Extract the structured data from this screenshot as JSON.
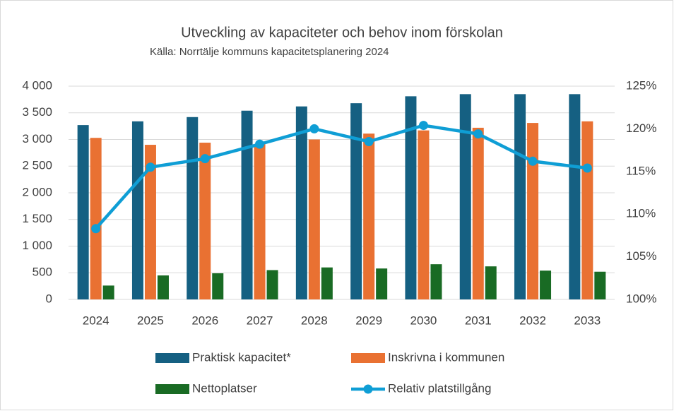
{
  "chart_data": {
    "type": "bar_line",
    "title": "Utveckling av kapaciteter och behov inom förskolan",
    "subtitle": "Källa: Norrtälje kommuns kapacitetsplanering 2024",
    "categories": [
      "2024",
      "2025",
      "2026",
      "2027",
      "2028",
      "2029",
      "2030",
      "2031",
      "2032",
      "2033"
    ],
    "series": [
      {
        "name": "Praktisk kapacitet*",
        "color": "#156082",
        "type": "bar",
        "values": [
          3270,
          3340,
          3420,
          3540,
          3620,
          3680,
          3810,
          3850,
          3850,
          3850
        ]
      },
      {
        "name": "Inskrivna i kommunen",
        "color": "#e97132",
        "type": "bar",
        "values": [
          3030,
          2900,
          2940,
          2910,
          3000,
          3110,
          3170,
          3220,
          3310,
          3340
        ]
      },
      {
        "name": "Nettoplatser",
        "color": "#196b24",
        "type": "bar",
        "values": [
          260,
          450,
          490,
          550,
          600,
          580,
          660,
          620,
          540,
          520
        ]
      },
      {
        "name": "Relativ platstillgång",
        "color": "#0f9ed5",
        "type": "line",
        "axis": "y2",
        "values": [
          108.3,
          115.5,
          116.5,
          118.2,
          120.0,
          118.5,
          120.4,
          119.4,
          116.2,
          115.4
        ]
      }
    ],
    "ylim": [
      0,
      4000
    ],
    "yticks": [
      0,
      500,
      {
        "value": 1000,
        "label": "1 000"
      },
      {
        "value": 1500,
        "label": "1 500"
      },
      {
        "value": 2000,
        "label": "2 000"
      },
      {
        "value": 2500,
        "label": "2 500"
      },
      {
        "value": 3000,
        "label": "3 000"
      },
      {
        "value": 3500,
        "label": "3 500"
      },
      {
        "value": 4000,
        "label": "4 000"
      }
    ],
    "y2lim": [
      100,
      125
    ],
    "y2ticks": [
      {
        "value": 100,
        "label": "100%"
      },
      {
        "value": 105,
        "label": "105%"
      },
      {
        "value": 110,
        "label": "110%"
      },
      {
        "value": 115,
        "label": "115%"
      },
      {
        "value": 120,
        "label": "120%"
      },
      {
        "value": 125,
        "label": "125%"
      }
    ],
    "grid": true,
    "legend": "bottom"
  }
}
